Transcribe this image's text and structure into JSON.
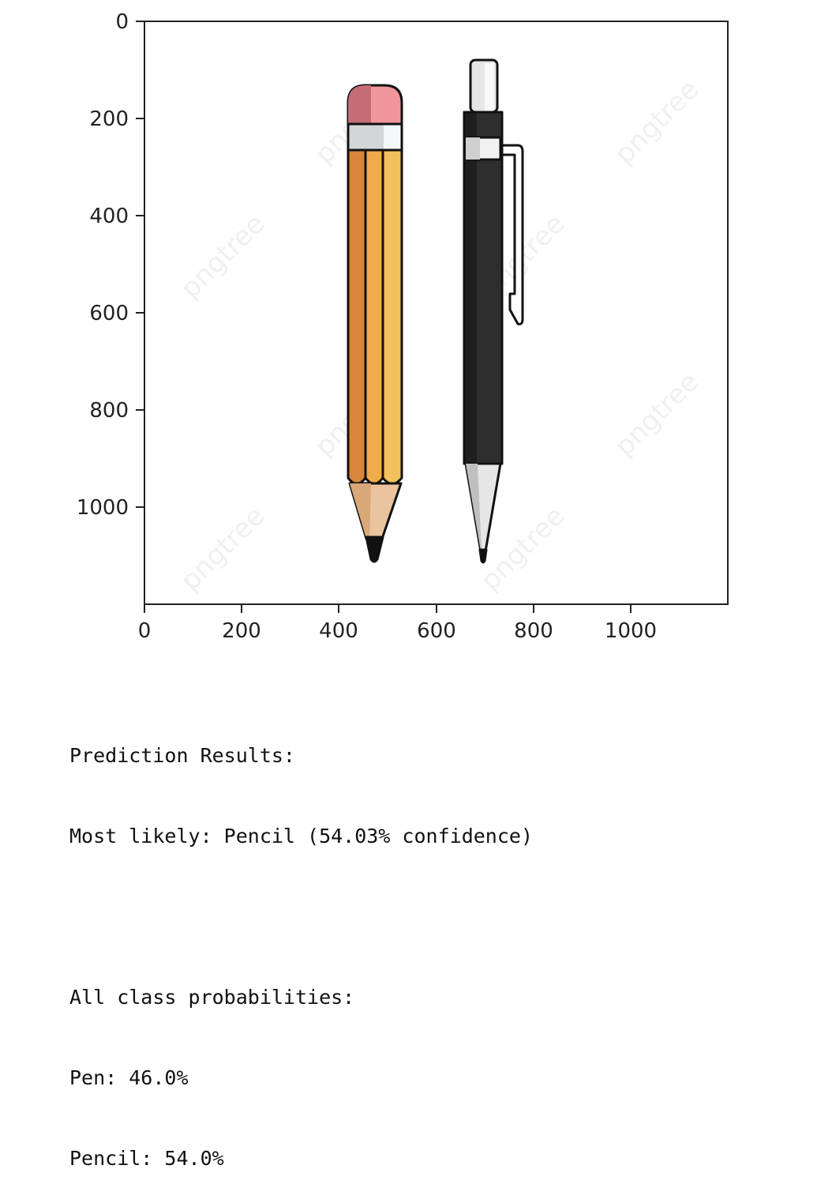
{
  "plot": {
    "x_ticks": [
      "0",
      "200",
      "400",
      "600",
      "800",
      "1000"
    ],
    "y_ticks": [
      "0",
      "200",
      "400",
      "600",
      "800",
      "1000"
    ],
    "x_range": [
      0,
      1200
    ],
    "y_range": [
      1200,
      0
    ],
    "image_watermark": "pngtree",
    "image_description_items": [
      "pencil-icon",
      "pen-icon"
    ]
  },
  "output": {
    "heading": "Prediction Results:",
    "most_likely": "Most likely: Pencil (54.03% confidence)",
    "blank": "",
    "probabilities_heading": "All class probabilities:",
    "probabilities": [
      {
        "label": "Pen: 46.0%"
      },
      {
        "label": "Pencil: 54.0%"
      }
    ]
  },
  "colors": {
    "pencil_body": "#E0923F",
    "pencil_body_light": "#F2C05C",
    "eraser": "#F0959C",
    "pen_body": "#2E2E2E",
    "metal": "#D8D8D8"
  }
}
